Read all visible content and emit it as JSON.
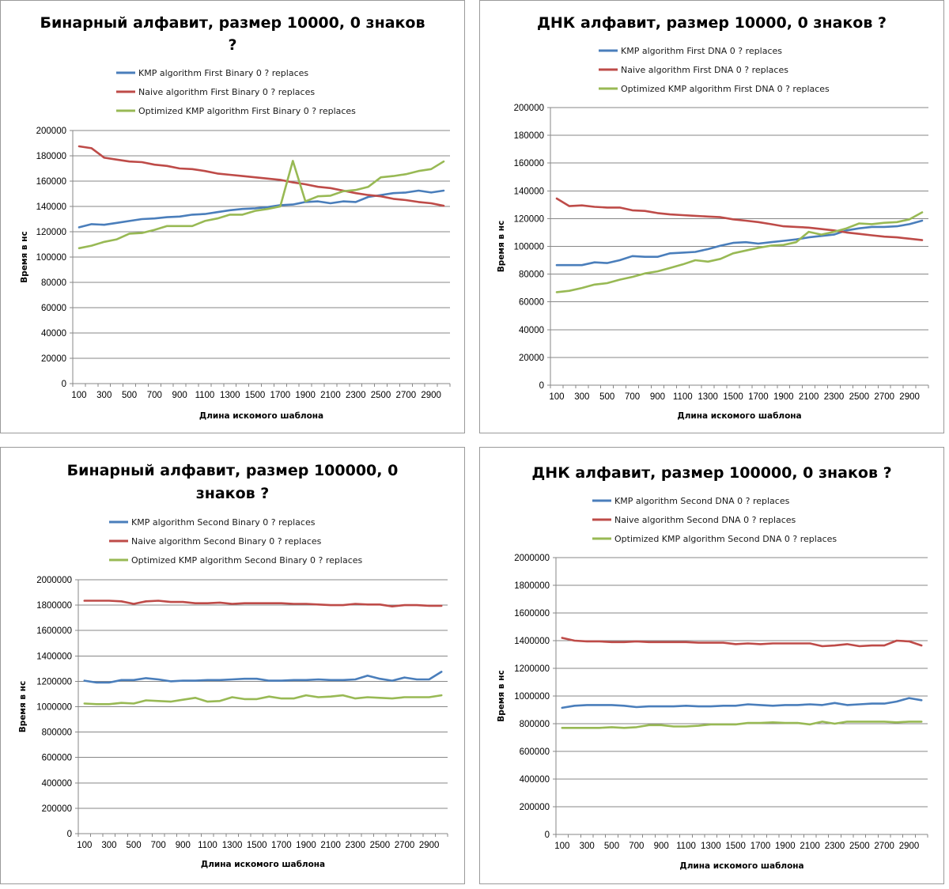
{
  "colors": {
    "kmp": "#4a7ebb",
    "naive": "#be4b48",
    "optimized": "#98b954",
    "gridline": "#878787"
  },
  "chart_data": [
    {
      "type": "line",
      "title_lines": [
        "Бинарный алфавит, размер 10000, 0 знаков",
        "?"
      ],
      "xlabel": "Длина искомого  шаблона",
      "ylabel": "Время в нс",
      "ylim": [
        0,
        200000
      ],
      "yticks": [
        "0",
        "20000",
        "40000",
        "60000",
        "80000",
        "100000",
        "120000",
        "140000",
        "160000",
        "180000",
        "200000"
      ],
      "xtick_labels": [
        "100",
        "300",
        "500",
        "700",
        "900",
        "1100",
        "1300",
        "1500",
        "1700",
        "1900",
        "2100",
        "2300",
        "2500",
        "2700",
        "2900"
      ],
      "x": [
        100,
        200,
        300,
        400,
        500,
        600,
        700,
        800,
        900,
        1000,
        1100,
        1200,
        1300,
        1400,
        1500,
        1600,
        1700,
        1800,
        1900,
        2000,
        2100,
        2200,
        2300,
        2400,
        2500,
        2600,
        2700,
        2800,
        2900,
        3000
      ],
      "grid": "horizontal",
      "legend_position": "top",
      "series": [
        {
          "name": "KMP algorithm First Binary 0 ? replaces",
          "color_key": "kmp",
          "values": [
            123500,
            126000,
            125500,
            127000,
            128500,
            130000,
            130500,
            131500,
            132000,
            133500,
            134000,
            135500,
            137000,
            138000,
            138500,
            139500,
            141000,
            141500,
            143500,
            144000,
            142500,
            144000,
            143500,
            147500,
            149000,
            150500,
            151000,
            152500,
            151000,
            152500
          ]
        },
        {
          "name": "Naive algorithm First Binary 0 ? replaces",
          "color_key": "naive",
          "values": [
            187500,
            186000,
            178500,
            177000,
            175500,
            175000,
            173000,
            172000,
            170000,
            169500,
            168000,
            166000,
            165000,
            164000,
            163000,
            162000,
            161000,
            159000,
            157500,
            155500,
            154500,
            152500,
            150500,
            149000,
            148000,
            146000,
            145000,
            143500,
            142500,
            140500
          ]
        },
        {
          "name": "Optimized KMP algorithm First Binary 0 ? replaces",
          "color_key": "optimized",
          "values": [
            107000,
            109000,
            112000,
            114000,
            118500,
            119000,
            121500,
            124500,
            124500,
            124500,
            128500,
            130500,
            133500,
            133500,
            136500,
            138000,
            140000,
            176000,
            144000,
            148000,
            148500,
            152000,
            153000,
            155500,
            163000,
            164000,
            165500,
            168000,
            169500,
            175500
          ]
        }
      ]
    },
    {
      "type": "line",
      "title_lines": [
        "ДНК алфавит, размер 10000, 0 знаков ?"
      ],
      "xlabel": "Длина искомого  шаблона",
      "ylabel": "Время в нс",
      "ylim": [
        0,
        200000
      ],
      "yticks": [
        "0",
        "20000",
        "40000",
        "60000",
        "80000",
        "100000",
        "120000",
        "140000",
        "160000",
        "180000",
        "200000"
      ],
      "xtick_labels": [
        "100",
        "300",
        "500",
        "700",
        "900",
        "1100",
        "1300",
        "1500",
        "1700",
        "1900",
        "2100",
        "2300",
        "2500",
        "2700",
        "2900"
      ],
      "x": [
        100,
        200,
        300,
        400,
        500,
        600,
        700,
        800,
        900,
        1000,
        1100,
        1200,
        1300,
        1400,
        1500,
        1600,
        1700,
        1800,
        1900,
        2000,
        2100,
        2200,
        2300,
        2400,
        2500,
        2600,
        2700,
        2800,
        2900,
        3000
      ],
      "grid": "horizontal",
      "legend_position": "top",
      "series": [
        {
          "name": "KMP algorithm First DNA 0 ? replaces",
          "color_key": "kmp",
          "values": [
            86500,
            86500,
            86500,
            88500,
            88000,
            90000,
            93000,
            92500,
            92500,
            95000,
            95500,
            96000,
            98000,
            100500,
            102500,
            103000,
            102000,
            103000,
            104000,
            105000,
            106500,
            107500,
            108500,
            111500,
            113000,
            114000,
            114000,
            114500,
            116000,
            118500
          ]
        },
        {
          "name": "Naive algorithm First DNA 0 ? replaces",
          "color_key": "naive",
          "values": [
            134500,
            129000,
            129500,
            128500,
            128000,
            128000,
            126000,
            125500,
            124000,
            123000,
            122500,
            122000,
            121500,
            121000,
            119500,
            118500,
            117500,
            116000,
            114500,
            114000,
            113500,
            112500,
            111500,
            110000,
            109000,
            108000,
            107000,
            106500,
            105500,
            104500
          ]
        },
        {
          "name": "Optimized KMP algorithm First DNA 0 ? replaces",
          "color_key": "optimized",
          "values": [
            67000,
            68000,
            70000,
            72500,
            73500,
            76000,
            78000,
            80500,
            82000,
            84500,
            87000,
            90000,
            89000,
            91000,
            95000,
            97000,
            99000,
            100500,
            101000,
            103000,
            110500,
            108500,
            110500,
            113000,
            116500,
            116000,
            117000,
            117500,
            119500,
            124500
          ]
        }
      ]
    },
    {
      "type": "line",
      "title_lines": [
        "Бинарный алфавит, размер 100000, 0",
        "знаков ?"
      ],
      "xlabel": "Длина искомого  шаблона",
      "ylabel": "Время в нс",
      "ylim": [
        0,
        2000000
      ],
      "yticks": [
        "0",
        "200000",
        "400000",
        "600000",
        "800000",
        "1000000",
        "1200000",
        "1400000",
        "1600000",
        "1800000",
        "2000000"
      ],
      "xtick_labels": [
        "100",
        "300",
        "500",
        "700",
        "900",
        "1100",
        "1300",
        "1500",
        "1700",
        "1900",
        "2100",
        "2300",
        "2500",
        "2700",
        "2900"
      ],
      "x": [
        100,
        200,
        300,
        400,
        500,
        600,
        700,
        800,
        900,
        1000,
        1100,
        1200,
        1300,
        1400,
        1500,
        1600,
        1700,
        1800,
        1900,
        2000,
        2100,
        2200,
        2300,
        2400,
        2500,
        2600,
        2700,
        2800,
        2900,
        3000
      ],
      "grid": "horizontal",
      "legend_position": "top",
      "series": [
        {
          "name": "KMP algorithm Second Binary 0 ? replaces",
          "color_key": "kmp",
          "values": [
            1205000,
            1190000,
            1190000,
            1210000,
            1210000,
            1225000,
            1215000,
            1200000,
            1205000,
            1205000,
            1210000,
            1210000,
            1215000,
            1220000,
            1220000,
            1205000,
            1205000,
            1210000,
            1210000,
            1215000,
            1210000,
            1210000,
            1215000,
            1245000,
            1220000,
            1205000,
            1230000,
            1215000,
            1215000,
            1275000
          ]
        },
        {
          "name": "Naive algorithm Second Binary 0 ? replaces",
          "color_key": "naive",
          "values": [
            1835000,
            1835000,
            1835000,
            1830000,
            1810000,
            1830000,
            1835000,
            1825000,
            1825000,
            1815000,
            1815000,
            1820000,
            1810000,
            1815000,
            1815000,
            1815000,
            1815000,
            1810000,
            1810000,
            1805000,
            1800000,
            1800000,
            1810000,
            1805000,
            1805000,
            1790000,
            1800000,
            1800000,
            1795000,
            1795000
          ]
        },
        {
          "name": "Optimized KMP algorithm Second Binary 0 ? replaces",
          "color_key": "optimized",
          "values": [
            1025000,
            1020000,
            1020000,
            1030000,
            1025000,
            1050000,
            1045000,
            1040000,
            1055000,
            1070000,
            1040000,
            1045000,
            1075000,
            1060000,
            1060000,
            1080000,
            1065000,
            1065000,
            1090000,
            1075000,
            1080000,
            1090000,
            1065000,
            1075000,
            1070000,
            1065000,
            1075000,
            1075000,
            1075000,
            1090000
          ]
        }
      ]
    },
    {
      "type": "line",
      "title_lines": [
        "ДНК алфавит, размер 100000, 0 знаков ?"
      ],
      "xlabel": "Длина искомого  шаблона",
      "ylabel": "Время в нс",
      "ylim": [
        0,
        2000000
      ],
      "yticks": [
        "0",
        "200000",
        "400000",
        "600000",
        "800000",
        "1000000",
        "1200000",
        "1400000",
        "1600000",
        "1800000",
        "2000000"
      ],
      "xtick_labels": [
        "100",
        "300",
        "500",
        "700",
        "900",
        "1100",
        "1300",
        "1500",
        "1700",
        "1900",
        "2100",
        "2300",
        "2500",
        "2700",
        "2900"
      ],
      "x": [
        100,
        200,
        300,
        400,
        500,
        600,
        700,
        800,
        900,
        1000,
        1100,
        1200,
        1300,
        1400,
        1500,
        1600,
        1700,
        1800,
        1900,
        2000,
        2100,
        2200,
        2300,
        2400,
        2500,
        2600,
        2700,
        2800,
        2900,
        3000
      ],
      "grid": "horizontal",
      "legend_position": "top",
      "series": [
        {
          "name": "KMP algorithm Second DNA 0 ? replaces",
          "color_key": "kmp",
          "values": [
            915000,
            930000,
            935000,
            935000,
            935000,
            930000,
            920000,
            925000,
            925000,
            925000,
            930000,
            925000,
            925000,
            930000,
            930000,
            940000,
            935000,
            930000,
            935000,
            935000,
            940000,
            935000,
            950000,
            935000,
            940000,
            945000,
            945000,
            960000,
            985000,
            970000
          ]
        },
        {
          "name": "Naive algorithm Second DNA 0 ? replaces",
          "color_key": "naive",
          "values": [
            1420000,
            1400000,
            1395000,
            1395000,
            1390000,
            1390000,
            1395000,
            1390000,
            1390000,
            1390000,
            1390000,
            1385000,
            1385000,
            1385000,
            1375000,
            1380000,
            1375000,
            1380000,
            1380000,
            1380000,
            1380000,
            1360000,
            1365000,
            1375000,
            1360000,
            1365000,
            1365000,
            1400000,
            1395000,
            1365000
          ]
        },
        {
          "name": "Optimized KMP algorithm Second DNA 0 ? replaces",
          "color_key": "optimized",
          "values": [
            770000,
            770000,
            770000,
            770000,
            775000,
            770000,
            775000,
            790000,
            790000,
            780000,
            780000,
            785000,
            795000,
            795000,
            795000,
            805000,
            805000,
            810000,
            805000,
            805000,
            795000,
            815000,
            800000,
            815000,
            815000,
            815000,
            815000,
            810000,
            815000,
            815000
          ]
        }
      ]
    }
  ]
}
